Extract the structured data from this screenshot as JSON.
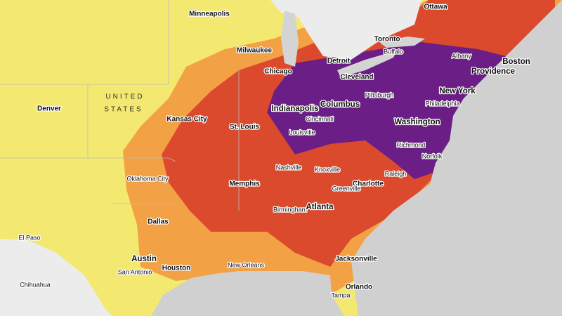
{
  "map": {
    "country_label": [
      "UNITED",
      "STATES"
    ],
    "cities": [
      "Ottawa",
      "Minneapolis",
      "Toronto",
      "Buffalo",
      "Albany",
      "Milwaukee",
      "Detroit",
      "Boston",
      "Providence",
      "Chicago",
      "Cleveland",
      "Pittsburgh",
      "New York",
      "Denver",
      "Kansas City",
      "Indianapolis",
      "Columbus",
      "Philadelphia",
      "Cincinnati",
      "St. Louis",
      "Louisville",
      "Washington",
      "Richmond",
      "Norfolk",
      "Nashville",
      "Knoxville",
      "Raleigh",
      "Oklahoma City",
      "Memphis",
      "Charlotte",
      "Greenville",
      "Birmingham",
      "Atlanta",
      "Dallas",
      "El Paso",
      "Austin",
      "Houston",
      "San Antonio",
      "New Orleans",
      "Jacksonville",
      "Chihuahua",
      "Orlando",
      "Tampa"
    ]
  }
}
